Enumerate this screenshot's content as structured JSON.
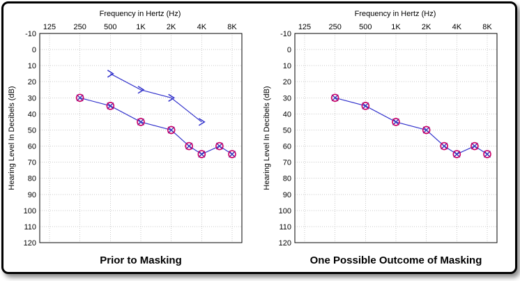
{
  "figure": {
    "background": "#ffffff",
    "border_color": "#000000",
    "grid_color": "#c9c9c9",
    "line_blue": "#3333cc",
    "symbol_red": "#cc0066"
  },
  "chart_data": [
    {
      "type": "line",
      "title": "Prior to Masking",
      "top_axis_label": "Frequency in Hertz (Hz)",
      "ylabel": "Hearing Level In Decibels (dB)",
      "x_ticks": [
        "125",
        "250",
        "500",
        "1K",
        "2K",
        "4K",
        "8K"
      ],
      "x_tick_freqs": [
        125,
        250,
        500,
        1000,
        2000,
        4000,
        8000
      ],
      "y_ticks": [
        -10,
        0,
        10,
        20,
        30,
        40,
        50,
        60,
        70,
        80,
        90,
        100,
        110,
        120
      ],
      "ylim": [
        -10,
        120
      ],
      "grid": true,
      "legend": "none",
      "series": [
        {
          "name": "air-conduction-thresholds",
          "symbol": "circle-x",
          "line_color": "#3333cc",
          "circle_color": "#cc0066",
          "x_color": "#3333bb",
          "freqs": [
            250,
            500,
            1000,
            2000,
            3000,
            4000,
            6000,
            8000
          ],
          "values_db": [
            30,
            35,
            45,
            50,
            60,
            65,
            60,
            65
          ]
        },
        {
          "name": "bone-conduction-unmasked",
          "symbol": "arrow-right",
          "line_color": "#3333cc",
          "freqs": [
            500,
            1000,
            2000,
            4000
          ],
          "values_db": [
            15,
            25,
            30,
            45
          ]
        }
      ]
    },
    {
      "type": "line",
      "title": "One Possible Outcome of Masking",
      "top_axis_label": "Frequency in Hertz (Hz)",
      "ylabel": "Hearing Level In Decibels (dB)",
      "x_ticks": [
        "125",
        "250",
        "500",
        "1K",
        "2K",
        "4K",
        "8K"
      ],
      "x_tick_freqs": [
        125,
        250,
        500,
        1000,
        2000,
        4000,
        8000
      ],
      "y_ticks": [
        -10,
        0,
        10,
        20,
        30,
        40,
        50,
        60,
        70,
        80,
        90,
        100,
        110,
        120
      ],
      "ylim": [
        -10,
        120
      ],
      "grid": true,
      "legend": "none",
      "series": [
        {
          "name": "air-conduction-thresholds",
          "symbol": "circle-x",
          "line_color": "#3333cc",
          "circle_color": "#cc0066",
          "x_color": "#3333bb",
          "freqs": [
            250,
            500,
            1000,
            2000,
            3000,
            4000,
            6000,
            8000
          ],
          "values_db": [
            30,
            35,
            45,
            50,
            60,
            65,
            60,
            65
          ]
        }
      ]
    }
  ]
}
